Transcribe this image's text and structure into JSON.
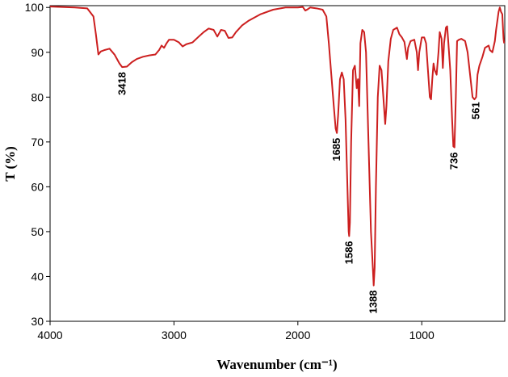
{
  "chart_data": {
    "type": "line",
    "xlabel": "Wavenumber (cm⁻¹)",
    "ylabel": "T (%)",
    "xlim": [
      4000,
      330
    ],
    "ylim": [
      30,
      100.4
    ],
    "xticks": [
      4000,
      3000,
      2000,
      1000
    ],
    "yticks": [
      30,
      40,
      50,
      60,
      70,
      80,
      90,
      100
    ],
    "color": "#cc1f1f",
    "x": [
      4000,
      3800,
      3700,
      3650,
      3630,
      3610,
      3590,
      3560,
      3520,
      3480,
      3440,
      3418,
      3380,
      3340,
      3300,
      3250,
      3200,
      3150,
      3120,
      3100,
      3080,
      3060,
      3040,
      3000,
      2960,
      2930,
      2900,
      2850,
      2800,
      2760,
      2720,
      2680,
      2650,
      2620,
      2590,
      2560,
      2530,
      2500,
      2450,
      2400,
      2300,
      2200,
      2100,
      2000,
      1960,
      1940,
      1920,
      1900,
      1850,
      1800,
      1770,
      1750,
      1730,
      1710,
      1695,
      1685,
      1675,
      1660,
      1645,
      1630,
      1615,
      1600,
      1590,
      1586,
      1580,
      1570,
      1555,
      1540,
      1525,
      1515,
      1505,
      1495,
      1480,
      1465,
      1450,
      1430,
      1410,
      1395,
      1388,
      1380,
      1370,
      1355,
      1340,
      1325,
      1310,
      1295,
      1285,
      1270,
      1250,
      1230,
      1200,
      1180,
      1160,
      1140,
      1120,
      1110,
      1090,
      1060,
      1040,
      1030,
      1020,
      1000,
      980,
      965,
      950,
      935,
      925,
      915,
      905,
      895,
      880,
      865,
      855,
      840,
      830,
      820,
      805,
      795,
      785,
      770,
      755,
      745,
      736,
      725,
      715,
      700,
      680,
      650,
      630,
      610,
      590,
      575,
      561,
      550,
      535,
      510,
      490,
      460,
      450,
      430,
      410,
      400,
      380,
      370,
      360,
      350,
      340,
      335
    ],
    "values": [
      100.2,
      100,
      99.8,
      98,
      94,
      89.5,
      90.2,
      90.5,
      90.8,
      89.5,
      87.5,
      86.7,
      86.8,
      87.8,
      88.5,
      89,
      89.3,
      89.5,
      90.5,
      91.5,
      91,
      92,
      92.8,
      92.8,
      92.2,
      91.3,
      91.8,
      92.2,
      93.5,
      94.5,
      95.3,
      95,
      93.5,
      95,
      94.8,
      93.2,
      93.3,
      94.5,
      96,
      97,
      98.5,
      99.5,
      100,
      100,
      100.1,
      99.3,
      99.6,
      100,
      99.8,
      99.5,
      98,
      92,
      85,
      78,
      73,
      72,
      76,
      84,
      85.5,
      84,
      75,
      60,
      50,
      49,
      52,
      70,
      86,
      87,
      82,
      84,
      78,
      92,
      95,
      94.5,
      90,
      70,
      50,
      42,
      38,
      42,
      60,
      80,
      87,
      86,
      80,
      74,
      78,
      88,
      93,
      95,
      95.5,
      94,
      93.3,
      92.3,
      88.5,
      91,
      92.5,
      92.8,
      90,
      86,
      90,
      93.3,
      93.3,
      92,
      86,
      80,
      79.5,
      84,
      87.5,
      86,
      85,
      90,
      94.5,
      93,
      86.5,
      92,
      95.5,
      95.8,
      92,
      86,
      75,
      69,
      68.8,
      80,
      92.5,
      92.8,
      93,
      92.5,
      90,
      85,
      80,
      79.5,
      80,
      85,
      87,
      89,
      91,
      91.5,
      90.5,
      90,
      92.5,
      95,
      99,
      100,
      99,
      98.5,
      93,
      92
    ],
    "peaks": [
      {
        "x": 3418,
        "y": 86.7
      },
      {
        "x": 1685,
        "y": 72
      },
      {
        "x": 1586,
        "y": 49
      },
      {
        "x": 1388,
        "y": 38
      },
      {
        "x": 736,
        "y": 68.8
      },
      {
        "x": 561,
        "y": 80
      }
    ]
  }
}
